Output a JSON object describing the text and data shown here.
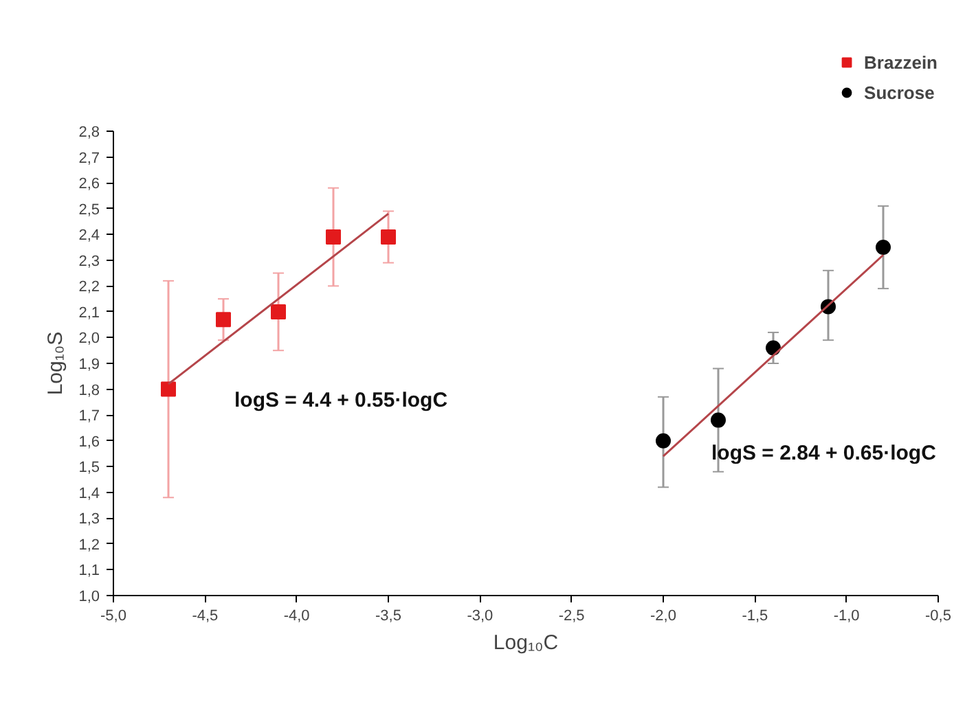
{
  "chart_data": {
    "type": "scatter",
    "xlabel": "Log₁₀C",
    "ylabel": "Log₁₀S",
    "xlim": [
      -5.0,
      -0.5
    ],
    "ylim": [
      1.0,
      2.8
    ],
    "xticks": [
      {
        "value": -5.0,
        "label": "-5,0"
      },
      {
        "value": -4.5,
        "label": "-4,5"
      },
      {
        "value": -4.0,
        "label": "-4,0"
      },
      {
        "value": -3.5,
        "label": "-3,5"
      },
      {
        "value": -3.0,
        "label": "-3,0"
      },
      {
        "value": -2.5,
        "label": "-2,5"
      },
      {
        "value": -2.0,
        "label": "-2,0"
      },
      {
        "value": -1.5,
        "label": "-1,5"
      },
      {
        "value": -1.0,
        "label": "-1,0"
      },
      {
        "value": -0.5,
        "label": "-0,5"
      }
    ],
    "yticks": [
      {
        "value": 1.0,
        "label": "1,0"
      },
      {
        "value": 1.1,
        "label": "1,1"
      },
      {
        "value": 1.2,
        "label": "1,2"
      },
      {
        "value": 1.3,
        "label": "1,3"
      },
      {
        "value": 1.4,
        "label": "1,4"
      },
      {
        "value": 1.5,
        "label": "1,5"
      },
      {
        "value": 1.6,
        "label": "1,6"
      },
      {
        "value": 1.7,
        "label": "1,7"
      },
      {
        "value": 1.8,
        "label": "1,8"
      },
      {
        "value": 1.9,
        "label": "1,9"
      },
      {
        "value": 2.0,
        "label": "2,0"
      },
      {
        "value": 2.1,
        "label": "2,1"
      },
      {
        "value": 2.2,
        "label": "2,2"
      },
      {
        "value": 2.3,
        "label": "2,3"
      },
      {
        "value": 2.4,
        "label": "2,4"
      },
      {
        "value": 2.5,
        "label": "2,5"
      },
      {
        "value": 2.6,
        "label": "2,6"
      },
      {
        "value": 2.7,
        "label": "2,7"
      },
      {
        "value": 2.8,
        "label": "2,8"
      }
    ],
    "grid": false,
    "legend": "top right",
    "series": [
      {
        "name": "Brazzein",
        "marker": "square",
        "color": "#e31a1c",
        "x": [
          -4.7,
          -4.4,
          -4.1,
          -3.8,
          -3.5
        ],
        "values": [
          1.8,
          2.07,
          2.1,
          2.39,
          2.39
        ],
        "errors": [
          [
            1.38,
            2.22
          ],
          0.08,
          [
            1.95,
            2.25
          ],
          [
            2.2,
            2.58
          ],
          [
            2.29,
            2.49
          ]
        ]
      },
      {
        "name": "Sucrose",
        "marker": "circle",
        "color": "#000000",
        "x": [
          -2.0,
          -1.7,
          -1.4,
          -1.1,
          -0.8
        ],
        "values": [
          1.6,
          1.68,
          1.96,
          2.12,
          2.35
        ],
        "errors": [
          [
            1.42,
            1.77
          ],
          [
            1.48,
            1.88
          ],
          [
            1.9,
            2.02
          ],
          [
            1.99,
            2.26
          ],
          [
            2.19,
            2.51
          ]
        ]
      },
      {
        "type": "line",
        "color": "#b5454a",
        "x": [
          -4.7,
          -3.5
        ],
        "values": [
          1.82,
          2.48
        ]
      },
      {
        "type": "line",
        "color": "#b5454a",
        "x": [
          -2.0,
          -0.8
        ],
        "values": [
          1.54,
          2.32
        ]
      }
    ],
    "annotations": [
      "logS = 4.4 + 0.55·logC",
      "logS = 2.84 + 0.65·logC"
    ]
  }
}
